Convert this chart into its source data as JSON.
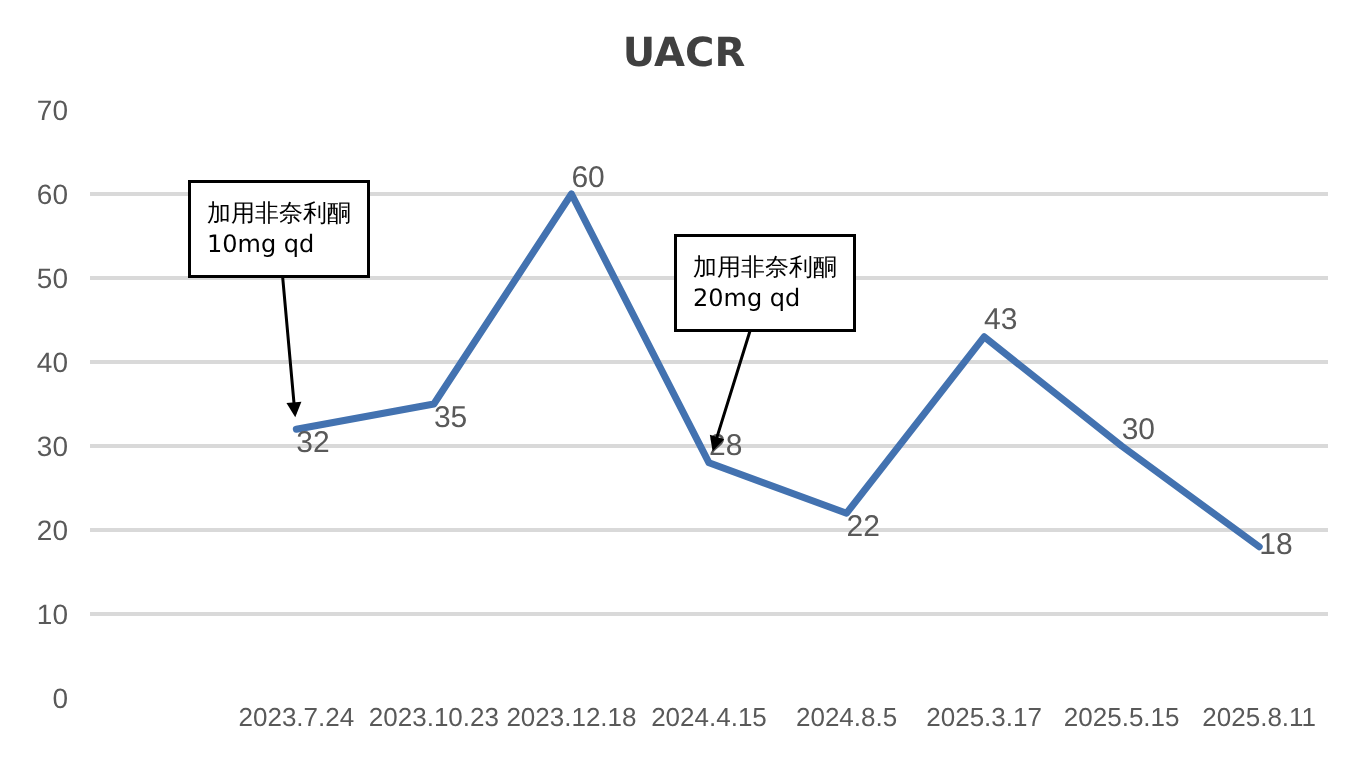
{
  "chart_data": {
    "type": "line",
    "title": "UACR",
    "categories": [
      null,
      "2023.7.24",
      "2023.10.23",
      "2023.12.18",
      "2024.4.15",
      "2024.8.5",
      "2025.3.17",
      "2025.5.15",
      "2025.8.11"
    ],
    "series": [
      {
        "color": "#4372b0",
        "values": [
          null,
          32,
          35,
          60,
          28,
          22,
          43,
          30,
          18
        ]
      }
    ],
    "ylim": [
      0,
      70
    ],
    "yticks": [
      0,
      10,
      20,
      30,
      40,
      50,
      60,
      70
    ],
    "grid": "y",
    "legend": false,
    "marker": "none",
    "line_style": "solid",
    "data_labels": true,
    "annotations": [
      {
        "text": "加用非奈利酮\n10mg qd",
        "x": "2023.7.24",
        "y": 32
      },
      {
        "text": "加用非奈利酮\n20mg qd",
        "x": "2024.4.15",
        "y": 28
      }
    ]
  }
}
